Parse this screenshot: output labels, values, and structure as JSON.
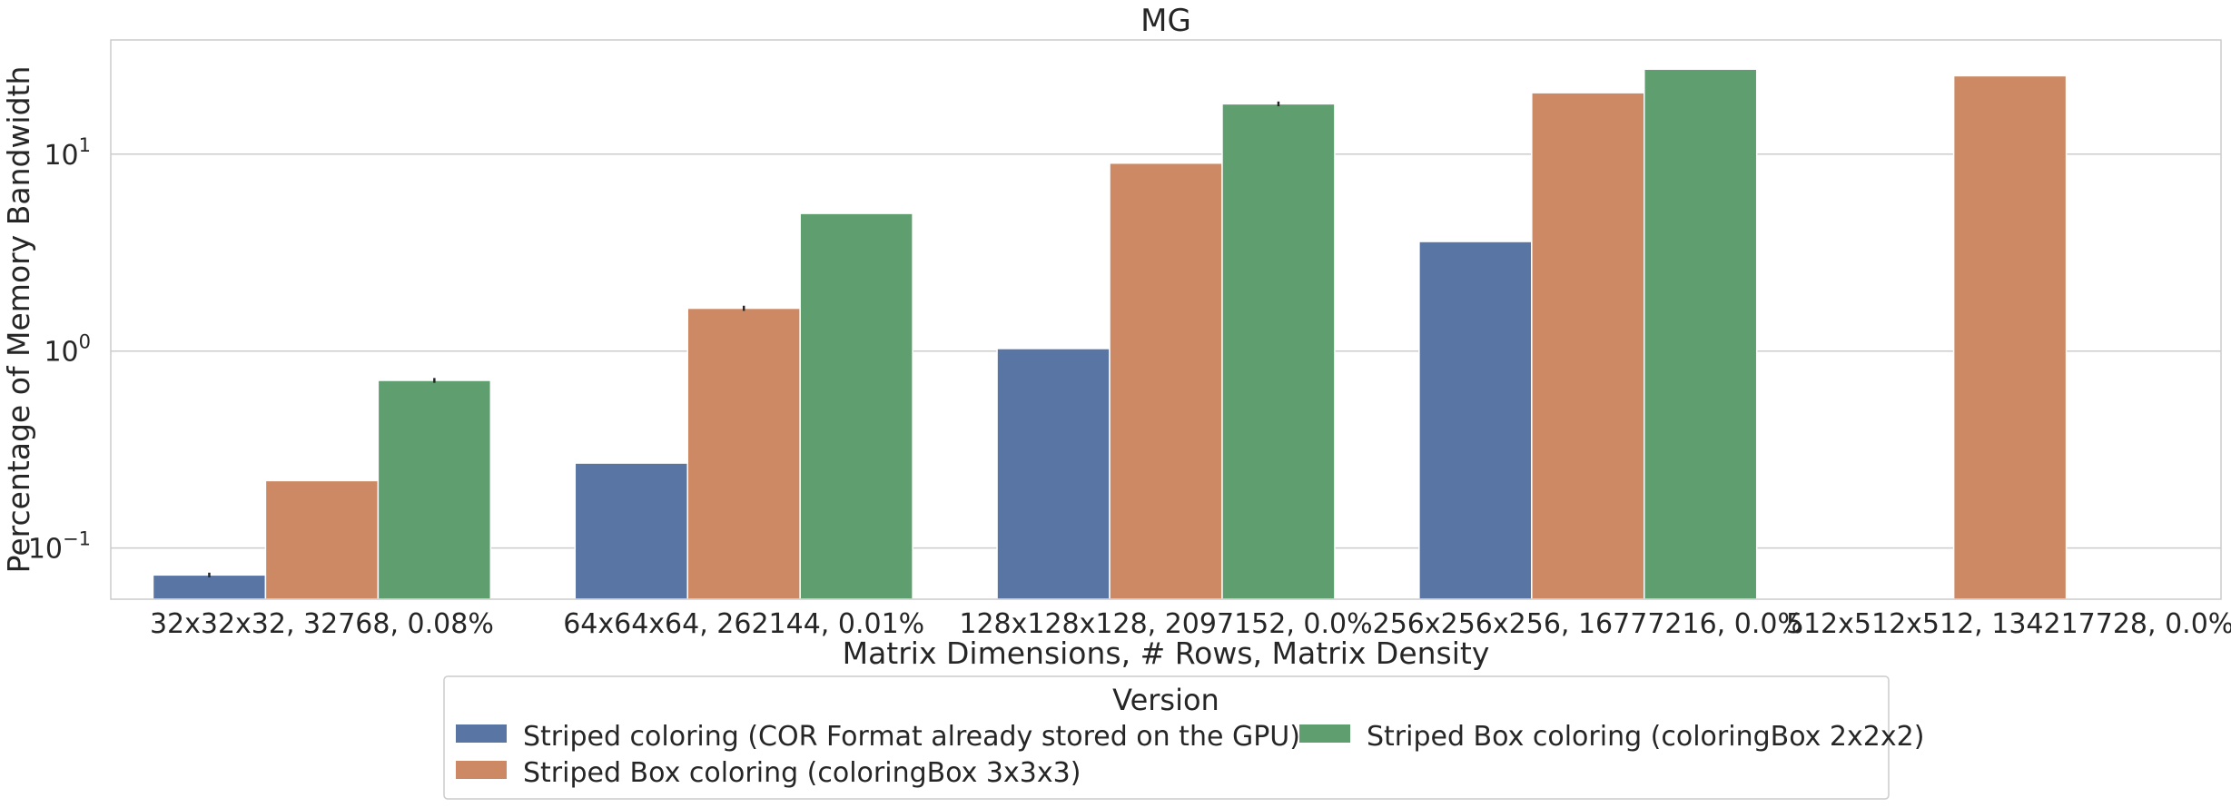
{
  "chart_data": {
    "type": "bar",
    "title": "MG",
    "xlabel": "Matrix Dimensions, # Rows, Matrix Density",
    "ylabel": "Percentage of Memory Bandwidth",
    "yscale": "log",
    "ylim": [
      0.055,
      38
    ],
    "yticks": [
      {
        "value": 0.1,
        "base": "10",
        "exp": "−1"
      },
      {
        "value": 1,
        "base": "10",
        "exp": "0"
      },
      {
        "value": 10,
        "base": "10",
        "exp": "1"
      }
    ],
    "grid": true,
    "categories": [
      "32x32x32, 32768, 0.08%",
      "64x64x64, 262144, 0.01%",
      "128x128x128, 2097152, 0.0%",
      "256x256x256, 16777216, 0.0%",
      "512x512x512, 134217728, 0.0%"
    ],
    "series": [
      {
        "name": "Striped coloring (COR Format already stored on the GPU)",
        "color": "#5875a4",
        "values": [
          0.073,
          0.27,
          1.03,
          3.6,
          null
        ],
        "errors": [
          0.002,
          0,
          0,
          0,
          null
        ]
      },
      {
        "name": "Striped Box coloring (coloringBox 3x3x3)",
        "color": "#cc8963",
        "values": [
          0.22,
          1.65,
          9.0,
          20.5,
          25.0
        ],
        "errors": [
          0,
          0.05,
          0,
          0,
          0
        ]
      },
      {
        "name": "Striped Box coloring (coloringBox 2x2x2)",
        "color": "#5f9e6e",
        "values": [
          0.71,
          5.0,
          18.0,
          27.0,
          null
        ],
        "errors": [
          0.02,
          0,
          0.5,
          0,
          null
        ]
      }
    ],
    "legend": {
      "title": "Version",
      "placement": "bottom-center",
      "columns": 2
    }
  }
}
